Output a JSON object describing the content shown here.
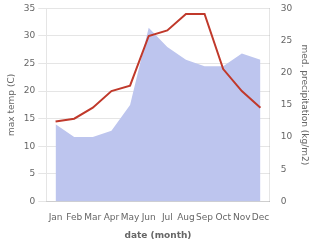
{
  "chart_data": {
    "type": "line",
    "categories": [
      "Jan",
      "Feb",
      "Mar",
      "Apr",
      "May",
      "Jun",
      "Jul",
      "Aug",
      "Sep",
      "Oct",
      "Nov",
      "Dec"
    ],
    "series": [
      {
        "type": "area",
        "axis": "y2",
        "color": "#bdc5ee",
        "values": [
          12.0,
          10.0,
          10.0,
          11.0,
          15.0,
          27.0,
          24.0,
          22.0,
          21.0,
          21.0,
          23.0,
          22.0
        ]
      },
      {
        "type": "line",
        "axis": "y",
        "color": "#c0392b",
        "values": [
          14.5,
          15.0,
          17.0,
          20.0,
          21.0,
          30.0,
          31.0,
          34.0,
          34.0,
          24.0,
          20.0,
          17.0
        ]
      }
    ],
    "xlabel": "date (month)",
    "ylabel": "max temp (C)",
    "y2label": "med. precipitation (kg/m2)",
    "ylim": [
      0,
      35
    ],
    "yticks": [
      0,
      5,
      10,
      15,
      20,
      25,
      30,
      35
    ],
    "y2lim": [
      0,
      30
    ],
    "y2ticks": [
      0,
      5,
      10,
      15,
      20,
      25,
      30
    ],
    "grid": true
  }
}
